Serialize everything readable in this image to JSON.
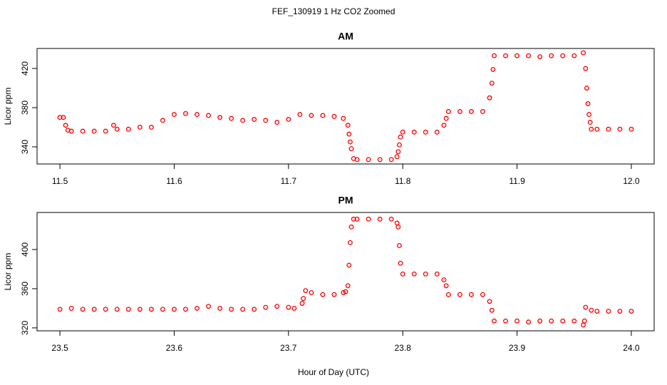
{
  "title": "FEF_130919  1 Hz CO2 Zoomed",
  "xlabel": "Hour of Day (UTC)",
  "chart_data": [
    {
      "type": "scatter",
      "title": "AM",
      "ylabel": "Licor ppm",
      "color": "#ff0000",
      "xlim": [
        11.48,
        12.02
      ],
      "ylim": [
        322.5,
        440.4
      ],
      "xticks": [
        11.5,
        11.6,
        11.7,
        11.8,
        11.9,
        {
          "value": 12,
          "label": "12.0"
        }
      ],
      "yticks": [
        340,
        380,
        420
      ],
      "x": [
        11.5,
        11.503,
        11.505,
        11.507,
        11.51,
        11.52,
        11.53,
        11.54,
        11.547,
        11.55,
        11.56,
        11.57,
        11.58,
        11.59,
        11.6,
        11.61,
        11.62,
        11.63,
        11.64,
        11.65,
        11.66,
        11.67,
        11.68,
        11.69,
        11.7,
        11.71,
        11.72,
        11.73,
        11.74,
        11.748,
        11.752,
        11.753,
        11.754,
        11.755,
        11.757,
        11.76,
        11.77,
        11.78,
        11.79,
        11.795,
        11.796,
        11.797,
        11.798,
        11.8,
        11.81,
        11.82,
        11.83,
        11.836,
        11.838,
        11.84,
        11.85,
        11.86,
        11.87,
        11.876,
        11.878,
        11.879,
        11.88,
        11.89,
        11.9,
        11.91,
        11.92,
        11.93,
        11.94,
        11.95,
        11.958,
        11.96,
        11.961,
        11.962,
        11.963,
        11.964,
        11.965,
        11.97,
        11.98,
        11.99,
        12.0
      ],
      "values": [
        370,
        370,
        362,
        357,
        356,
        356,
        356,
        356,
        362,
        358,
        358,
        360,
        360,
        367,
        373,
        374,
        373,
        372,
        370,
        369,
        367,
        368,
        367,
        365,
        368,
        373,
        372,
        372,
        371,
        369,
        362,
        353,
        345,
        338,
        328,
        327,
        327,
        327,
        327,
        330,
        335,
        342,
        350,
        355,
        355,
        355,
        355,
        362,
        369,
        376,
        376,
        376,
        376,
        390,
        405,
        419,
        433,
        433,
        433,
        433,
        432,
        433,
        433,
        433,
        436,
        420,
        400,
        384,
        373,
        365,
        358,
        358,
        358,
        358,
        358
      ]
    },
    {
      "type": "scatter",
      "title": "PM",
      "ylabel": "Licor ppm",
      "color": "#ff0000",
      "xlim": [
        23.48,
        24.02
      ],
      "ylim": [
        317,
        437.8
      ],
      "xticks": [
        23.5,
        23.6,
        23.7,
        23.8,
        23.9,
        {
          "value": 24,
          "label": "24.0"
        }
      ],
      "yticks": [
        320,
        360,
        400
      ],
      "x": [
        23.5,
        23.51,
        23.52,
        23.53,
        23.54,
        23.55,
        23.56,
        23.57,
        23.58,
        23.59,
        23.6,
        23.61,
        23.62,
        23.63,
        23.64,
        23.65,
        23.66,
        23.67,
        23.68,
        23.69,
        23.7,
        23.705,
        23.712,
        23.713,
        23.715,
        23.72,
        23.73,
        23.74,
        23.748,
        23.75,
        23.752,
        23.753,
        23.754,
        23.755,
        23.757,
        23.76,
        23.77,
        23.78,
        23.79,
        23.795,
        23.796,
        23.797,
        23.798,
        23.8,
        23.81,
        23.82,
        23.83,
        23.836,
        23.838,
        23.84,
        23.85,
        23.86,
        23.87,
        23.876,
        23.878,
        23.88,
        23.89,
        23.9,
        23.91,
        23.92,
        23.93,
        23.94,
        23.95,
        23.958,
        23.959,
        23.96,
        23.965,
        23.97,
        23.98,
        23.99,
        24.0
      ],
      "values": [
        339,
        340,
        339,
        339,
        339,
        339,
        339,
        339,
        339,
        339,
        339,
        339,
        340,
        342,
        340,
        339,
        339,
        339,
        341,
        342,
        341,
        340,
        345,
        350,
        358,
        356,
        354,
        354,
        356,
        357,
        363,
        384,
        407,
        423,
        431,
        431,
        431,
        431,
        431,
        427,
        423,
        404,
        386,
        375,
        375,
        375,
        375,
        369,
        363,
        354,
        354,
        354,
        354,
        347,
        338,
        327,
        327,
        327,
        326,
        327,
        327,
        327,
        327,
        323,
        327,
        341,
        338,
        337,
        337,
        337,
        337
      ]
    }
  ]
}
